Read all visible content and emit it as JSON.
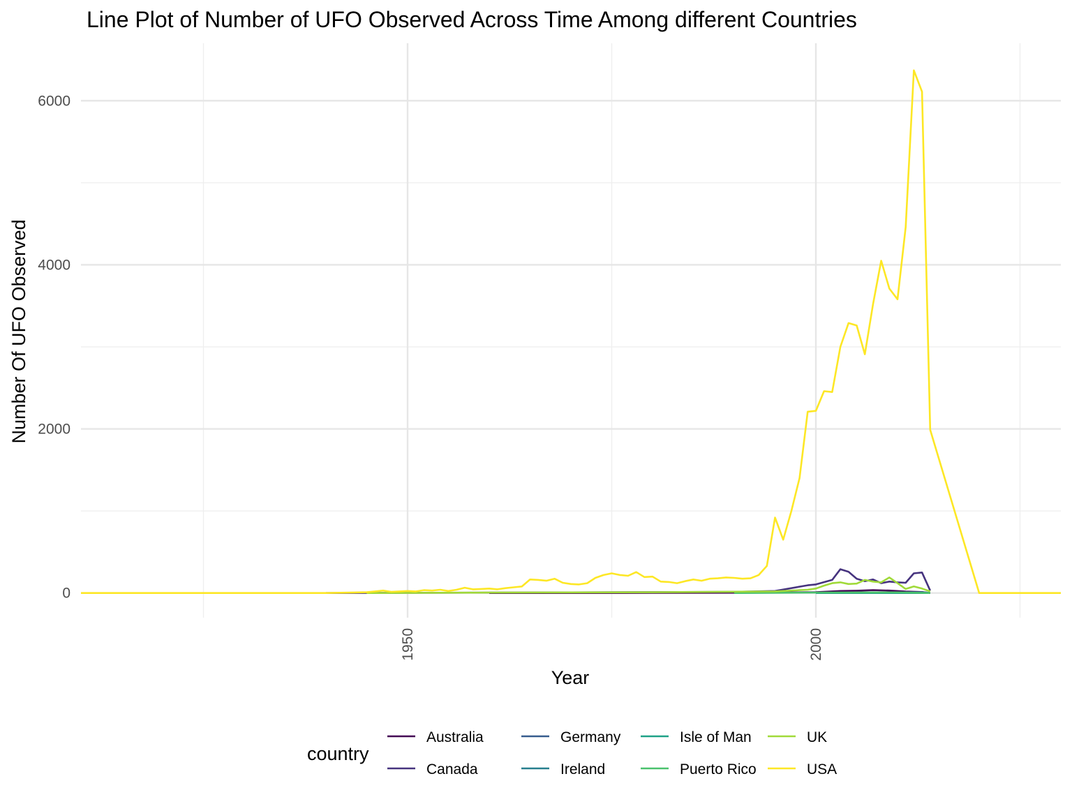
{
  "chart_data": {
    "type": "line",
    "title": "Line Plot of Number of UFO Observed Across Time Among different Countries",
    "xlabel": "Year",
    "ylabel": "Number Of UFO Observed",
    "xlim": [
      1910,
      2030
    ],
    "ylim": [
      -300,
      6700
    ],
    "x_ticks": [
      1950,
      2000
    ],
    "x_minor": [
      1925,
      1975,
      2025
    ],
    "y_ticks": [
      0,
      2000,
      4000,
      6000
    ],
    "y_minor": [
      1000,
      3000,
      5000
    ],
    "grid": true,
    "legend": {
      "title": "country",
      "position": "bottom",
      "columns": [
        [
          "Australia",
          "Canada"
        ],
        [
          "Germany",
          "Ireland"
        ],
        [
          "Isle of Man",
          "Puerto Rico"
        ],
        [
          "UK",
          "USA"
        ]
      ]
    },
    "series": [
      {
        "name": "Australia",
        "color": "#440154",
        "x": [
          1960,
          1980,
          1995,
          2000,
          2003,
          2005,
          2007,
          2009,
          2011,
          2013,
          2014
        ],
        "y": [
          0,
          2,
          5,
          10,
          25,
          28,
          35,
          30,
          18,
          12,
          0
        ]
      },
      {
        "name": "Canada",
        "color": "#46337e",
        "x": [
          1940,
          1970,
          1990,
          1995,
          1999,
          2000,
          2002,
          2003,
          2004,
          2005,
          2006,
          2007,
          2008,
          2009,
          2010,
          2011,
          2012,
          2013,
          2014
        ],
        "y": [
          0,
          8,
          15,
          25,
          95,
          105,
          160,
          290,
          260,
          175,
          145,
          165,
          120,
          140,
          130,
          125,
          240,
          250,
          30
        ]
      },
      {
        "name": "Germany",
        "color": "#365c8d",
        "x": [
          2005,
          2010,
          2013,
          2014
        ],
        "y": [
          5,
          8,
          10,
          0
        ]
      },
      {
        "name": "Ireland",
        "color": "#277f8e",
        "x": [
          2005,
          2010,
          2014
        ],
        "y": [
          3,
          5,
          0
        ]
      },
      {
        "name": "Isle of Man",
        "color": "#1fa187",
        "x": [
          2000,
          2014
        ],
        "y": [
          0,
          0
        ]
      },
      {
        "name": "Puerto Rico",
        "color": "#4ac16d",
        "x": [
          1990,
          2000,
          2010,
          2014
        ],
        "y": [
          0,
          5,
          8,
          0
        ]
      },
      {
        "name": "UK",
        "color": "#a0da39",
        "x": [
          1945,
          1960,
          1980,
          1995,
          1999,
          2000,
          2001,
          2002,
          2003,
          2004,
          2005,
          2006,
          2007,
          2008,
          2009,
          2010,
          2011,
          2012,
          2013,
          2014
        ],
        "y": [
          0,
          5,
          10,
          20,
          40,
          55,
          90,
          120,
          130,
          110,
          115,
          160,
          140,
          130,
          190,
          120,
          50,
          80,
          55,
          20
        ]
      },
      {
        "name": "USA",
        "color": "#fde725",
        "x": [
          1910,
          1935,
          1940,
          1945,
          1946,
          1947,
          1948,
          1949,
          1950,
          1951,
          1952,
          1953,
          1954,
          1955,
          1956,
          1957,
          1958,
          1959,
          1960,
          1961,
          1962,
          1963,
          1964,
          1965,
          1966,
          1967,
          1968,
          1969,
          1970,
          1971,
          1972,
          1973,
          1974,
          1975,
          1976,
          1977,
          1978,
          1979,
          1980,
          1981,
          1982,
          1983,
          1984,
          1985,
          1986,
          1987,
          1988,
          1989,
          1990,
          1991,
          1992,
          1993,
          1994,
          1995,
          1996,
          1997,
          1998,
          1999,
          2000,
          2001,
          2002,
          2003,
          2004,
          2005,
          2006,
          2007,
          2008,
          2009,
          2010,
          2011,
          2012,
          2013,
          2014,
          2020,
          2021,
          2030
        ],
        "y": [
          0,
          0,
          0,
          10,
          20,
          30,
          15,
          20,
          25,
          20,
          35,
          30,
          40,
          25,
          40,
          65,
          45,
          50,
          55,
          45,
          60,
          70,
          80,
          165,
          160,
          150,
          175,
          125,
          110,
          105,
          120,
          185,
          220,
          240,
          220,
          210,
          255,
          195,
          200,
          140,
          135,
          120,
          145,
          165,
          150,
          175,
          180,
          190,
          185,
          175,
          180,
          220,
          330,
          920,
          650,
          1000,
          1400,
          2210,
          2220,
          2460,
          2450,
          3000,
          3290,
          3260,
          2910,
          3520,
          4050,
          3710,
          3580,
          4460,
          6370,
          6110,
          1990,
          0,
          0,
          0
        ]
      }
    ]
  }
}
